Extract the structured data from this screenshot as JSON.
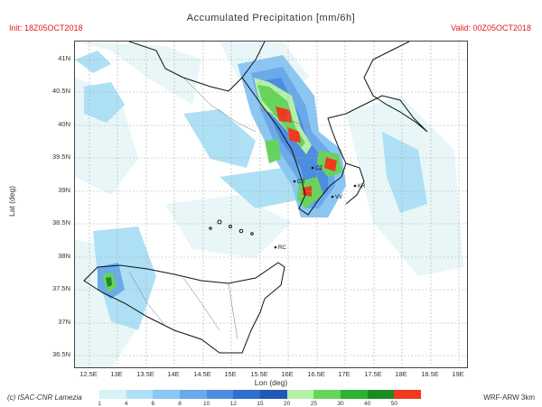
{
  "header": {
    "title": "Accumulated Precipitation [mm/6h]",
    "init": "Init: 18Z05OCT2018",
    "valid": "Valid: 00Z05OCT2018"
  },
  "axes": {
    "ylabel": "Lat (deg)",
    "xlabel": "Lon (deg)",
    "lat_ticks": [
      "41N",
      "40.5N",
      "40N",
      "39.5N",
      "39N",
      "38.5N",
      "38N",
      "37.5N",
      "37N",
      "36.5N"
    ],
    "lon_ticks": [
      "12.5E",
      "13E",
      "13.5E",
      "14E",
      "14.5E",
      "15E",
      "15.5E",
      "16E",
      "16.5E",
      "17E",
      "17.5E",
      "18E",
      "18.5E",
      "19E"
    ]
  },
  "footer": {
    "credit": "(c) ISAC-CNR Lamezia",
    "model": "WRF-ARW 3km"
  },
  "colorbar": {
    "labels": [
      "1",
      "4",
      "6",
      "8",
      "10",
      "12",
      "15",
      "20",
      "25",
      "30",
      "40",
      "50"
    ],
    "colors": [
      "#d7f3f3",
      "#aee0f5",
      "#8cc6f2",
      "#6aa9ea",
      "#4d8de0",
      "#2f6fcf",
      "#1f58b8",
      "#b4f0a8",
      "#66d45c",
      "#2eb034",
      "#1b8a22",
      "#f03a1e"
    ]
  },
  "places": {
    "cz": "CZ",
    "kr": "KR",
    "cs": "CS",
    "rc": "RC",
    "vv": "VV"
  },
  "colors": {
    "frame": "#444444",
    "coast": "#111111",
    "grid": "#aaaaaa",
    "title_red": "#e0181b"
  }
}
